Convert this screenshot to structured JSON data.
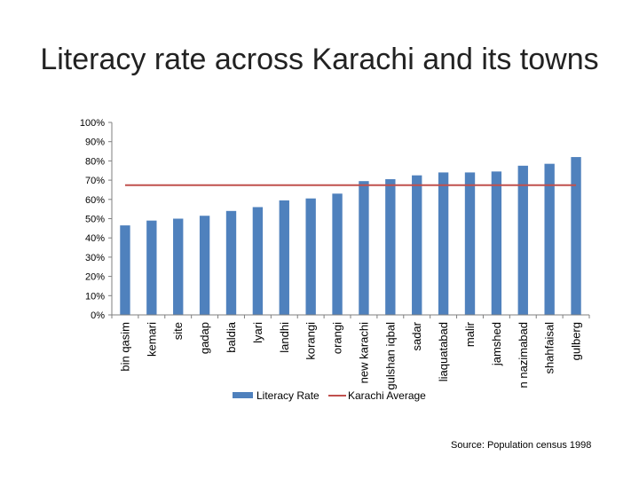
{
  "colors": {
    "bar": "#4f81bd",
    "average_line": "#c0504d",
    "axis": "#7f7f7f"
  },
  "source": "Source: Population census 1998",
  "chart_data": {
    "type": "bar",
    "title": "Literacy rate across Karachi and its towns",
    "categories": [
      "bin qasim",
      "kemari",
      "site",
      "gadap",
      "baldia",
      "lyari",
      "landhi",
      "korangi",
      "orangi",
      "new karachi",
      "gulshan iqbal",
      "sadar",
      "liaquatabad",
      "malir",
      "jamshed",
      "n nazimabad",
      "shahfaisal",
      "gulberg"
    ],
    "series": [
      {
        "name": "Literacy Rate",
        "kind": "bar",
        "values": [
          46.5,
          49,
          50,
          51.5,
          54,
          56,
          59.5,
          60.5,
          63,
          69.5,
          70.5,
          72.5,
          74,
          74,
          74.5,
          77.5,
          78.5,
          82
        ]
      },
      {
        "name": "Karachi Average",
        "kind": "line",
        "values": [
          67.4,
          67.4,
          67.4,
          67.4,
          67.4,
          67.4,
          67.4,
          67.4,
          67.4,
          67.4,
          67.4,
          67.4,
          67.4,
          67.4,
          67.4,
          67.4,
          67.4,
          67.4
        ]
      }
    ],
    "ylim": [
      0,
      100
    ],
    "yticks": [
      "0%",
      "10%",
      "20%",
      "30%",
      "40%",
      "50%",
      "60%",
      "70%",
      "80%",
      "90%",
      "100%"
    ],
    "xlabel": "",
    "ylabel": "",
    "grid": false,
    "legend_position": "bottom"
  }
}
